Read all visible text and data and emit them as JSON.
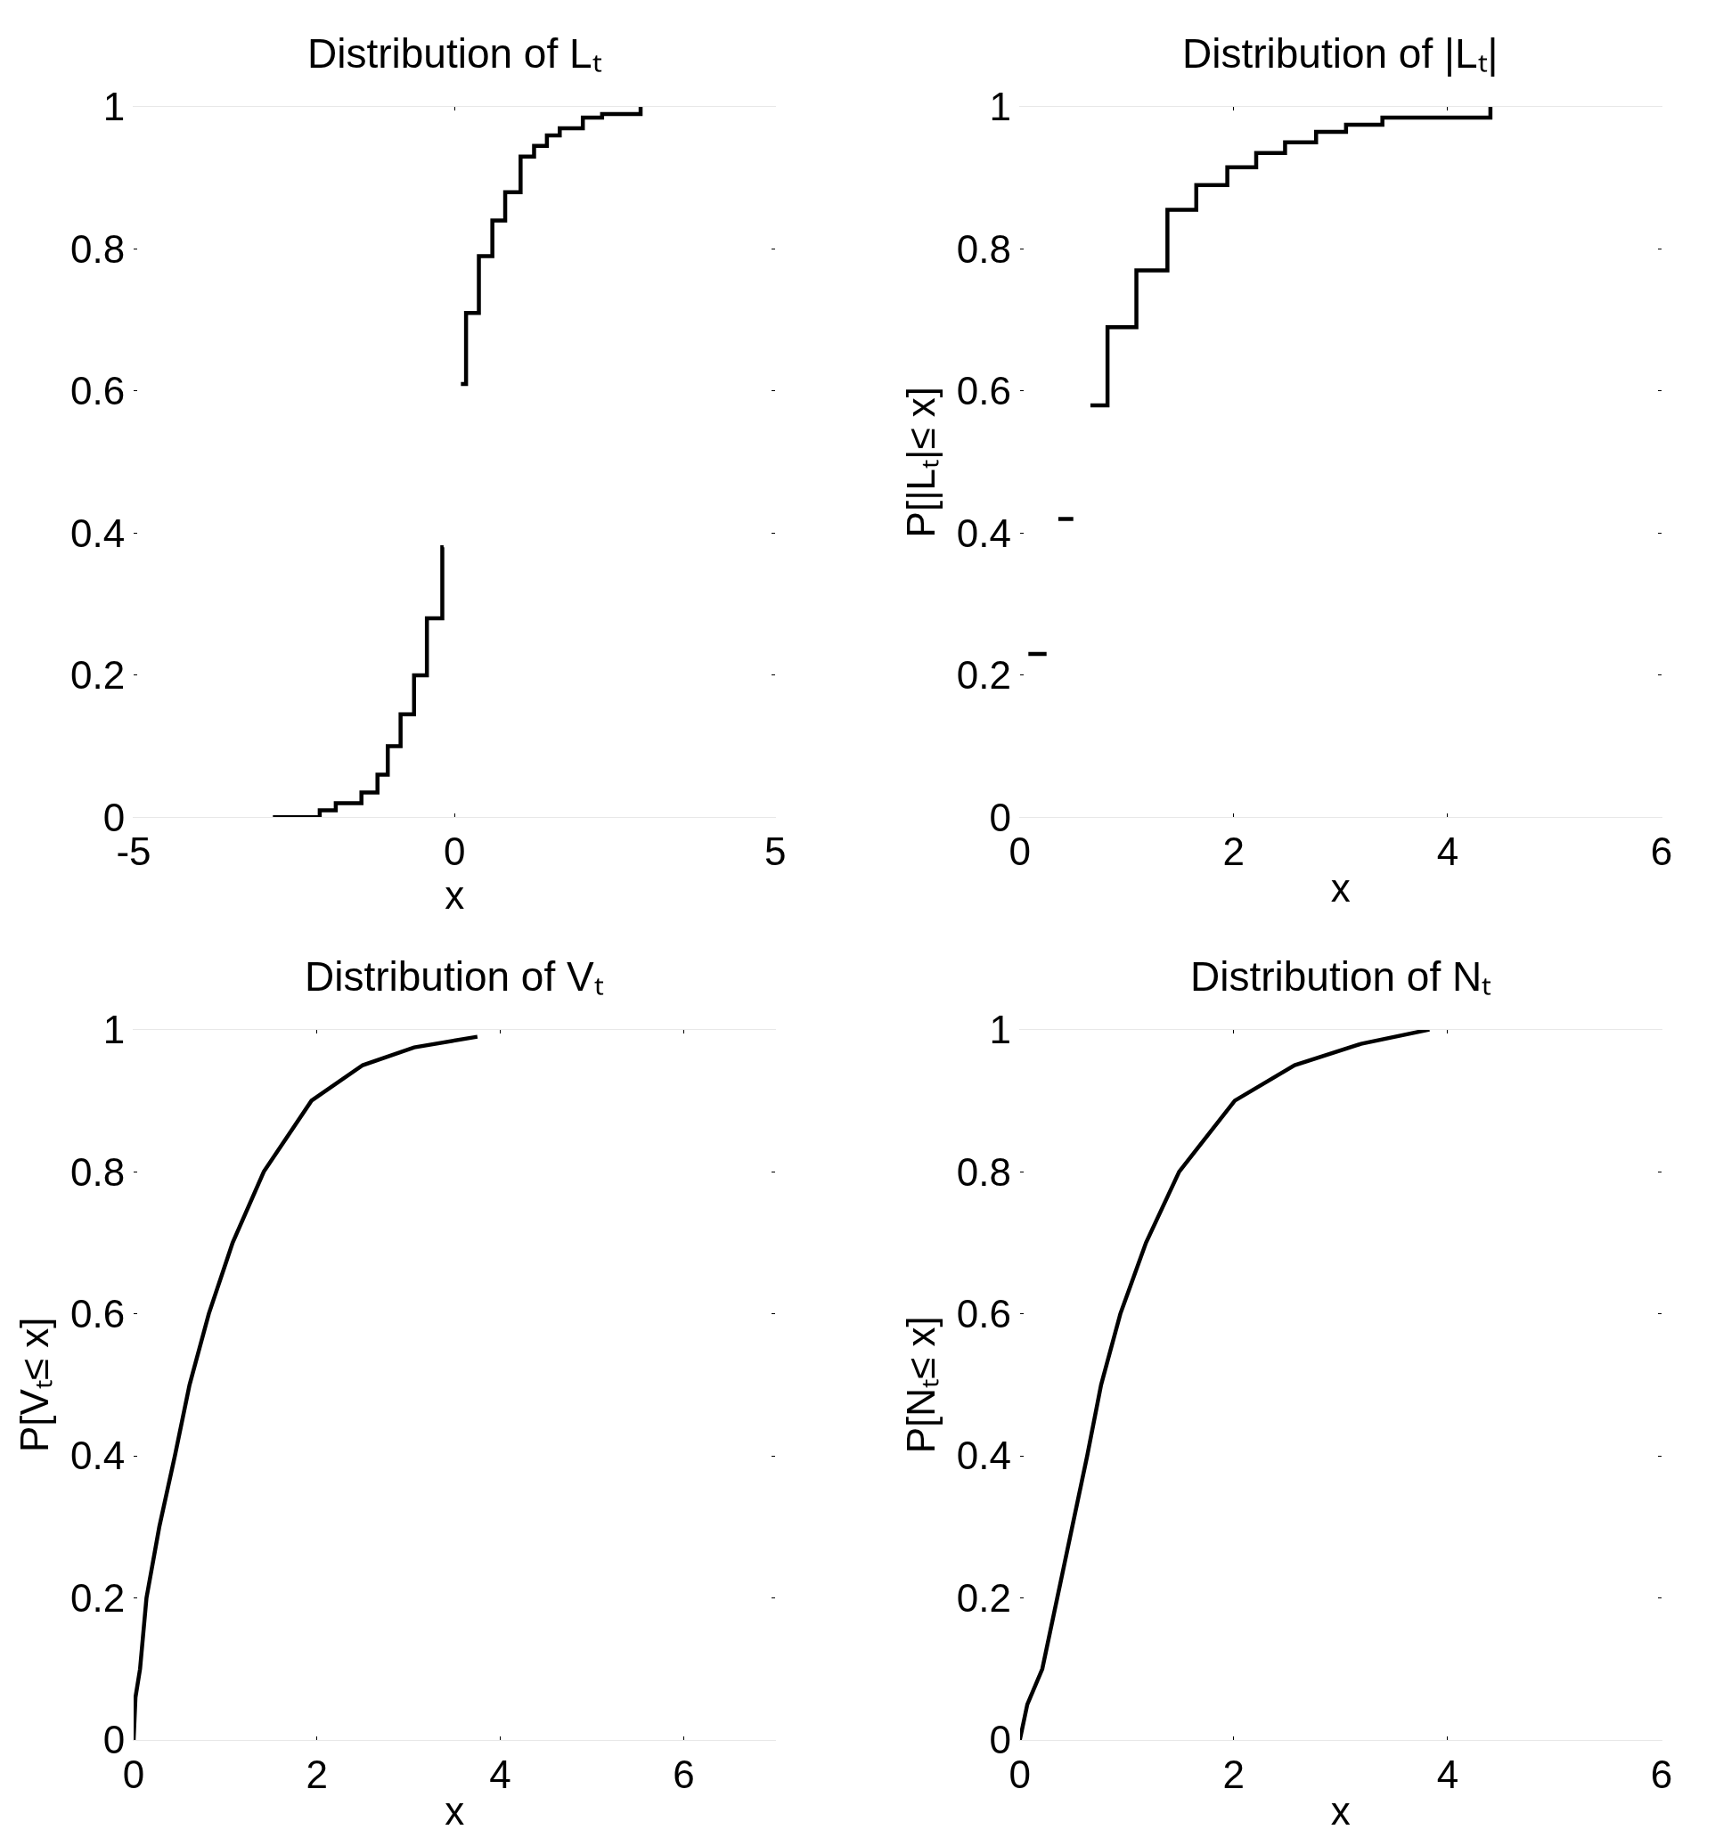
{
  "chart_data": [
    {
      "type": "step",
      "title": "Distribution of Lₜ",
      "xlabel": "x",
      "xlim": [
        -5,
        5
      ],
      "xticks": [
        -5,
        0,
        5
      ],
      "ylim": [
        0,
        1
      ],
      "yticks": [
        0,
        0.2,
        0.4,
        0.6,
        0.8,
        1
      ],
      "series": [
        {
          "color": "#000000",
          "x": [
            -2.83,
            -2.1,
            -1.85,
            -1.45,
            -1.2,
            -1.04,
            -0.84,
            -0.63,
            -0.43,
            -0.19,
            -0.17,
            null,
            0.1,
            0.18,
            0.38,
            0.59,
            0.79,
            1.03,
            1.24,
            1.44,
            1.64,
            2.0,
            2.3,
            2.9
          ],
          "values": [
            0,
            0.01,
            0.02,
            0.035,
            0.06,
            0.1,
            0.145,
            0.2,
            0.28,
            0.38,
            0.38,
            null,
            0.61,
            0.71,
            0.79,
            0.84,
            0.88,
            0.93,
            0.945,
            0.96,
            0.97,
            0.985,
            0.99,
            1.0
          ]
        }
      ]
    },
    {
      "type": "step",
      "title": "Distribution of |Lₜ|",
      "xlabel": "x",
      "ylabel": "P[|Lₜ|≤ x]",
      "xlim": [
        0,
        6
      ],
      "xticks": [
        0,
        2,
        4,
        6
      ],
      "ylim": [
        0,
        1
      ],
      "yticks": [
        0,
        0.2,
        0.4,
        0.6,
        0.8,
        1
      ],
      "series": [
        {
          "color": "#000000",
          "x": [
            0.08,
            0.25,
            null,
            0.36,
            0.5,
            null,
            0.66,
            0.82,
            1.09,
            1.38,
            1.65,
            1.94,
            2.21,
            2.48,
            2.77,
            3.05,
            3.39,
            4.4
          ],
          "values": [
            0.23,
            0.23,
            null,
            0.42,
            0.42,
            null,
            0.58,
            0.69,
            0.77,
            0.855,
            0.89,
            0.915,
            0.935,
            0.95,
            0.965,
            0.975,
            0.985,
            1.0
          ]
        }
      ]
    },
    {
      "type": "line",
      "title": "Distribution of Vₜ",
      "xlabel": "x",
      "ylabel": "P[Vₜ≤ x]",
      "xlim": [
        0,
        7
      ],
      "xticks": [
        0,
        2,
        4,
        6
      ],
      "ylim": [
        0,
        1
      ],
      "yticks": [
        0,
        0.2,
        0.4,
        0.6,
        0.8,
        1
      ],
      "series": [
        {
          "color": "#000000",
          "x": [
            0,
            0.02,
            0.07,
            0.14,
            0.28,
            0.45,
            0.61,
            0.82,
            1.08,
            1.42,
            1.94,
            2.5,
            3.06,
            3.75
          ],
          "values": [
            0,
            0.06,
            0.1,
            0.2,
            0.3,
            0.4,
            0.5,
            0.6,
            0.7,
            0.8,
            0.9,
            0.95,
            0.975,
            0.99
          ]
        }
      ]
    },
    {
      "type": "line",
      "title": "Distribution of Nₜ",
      "xlabel": "x",
      "ylabel": "P[Nₜ≤ x]",
      "xlim": [
        0,
        6
      ],
      "xticks": [
        0,
        2,
        4,
        6
      ],
      "ylim": [
        0,
        1
      ],
      "yticks": [
        0,
        0.2,
        0.4,
        0.6,
        0.8,
        1
      ],
      "series": [
        {
          "color": "#000000",
          "x": [
            0,
            0.07,
            0.21,
            0.35,
            0.49,
            0.63,
            0.76,
            0.94,
            1.18,
            1.49,
            2.01,
            2.57,
            3.19,
            3.83
          ],
          "values": [
            0,
            0.05,
            0.1,
            0.2,
            0.3,
            0.4,
            0.5,
            0.6,
            0.7,
            0.8,
            0.9,
            0.95,
            0.98,
            1.0
          ]
        }
      ]
    }
  ]
}
